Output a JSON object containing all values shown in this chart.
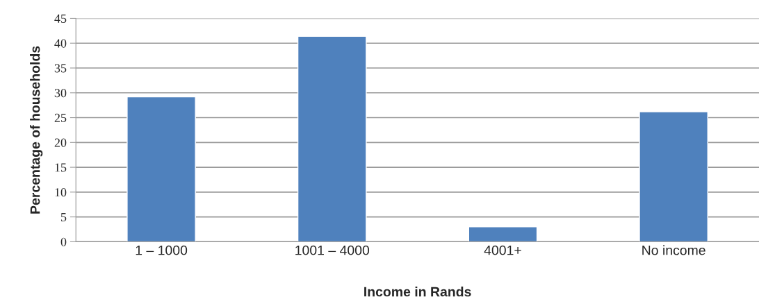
{
  "chart_data": {
    "type": "bar",
    "xlabel": "Income in Rands",
    "ylabel": "Percentage of households",
    "categories": [
      "1 – 1000",
      "1001 – 4000",
      "4001+",
      "No income"
    ],
    "values": [
      29.2,
      41.4,
      3.0,
      26.2
    ],
    "color": "#4f81bd",
    "ylim": [
      0,
      45
    ],
    "yticks": [
      0,
      5,
      10,
      15,
      20,
      25,
      30,
      35,
      40,
      45
    ],
    "grid": "y",
    "legend": false
  }
}
